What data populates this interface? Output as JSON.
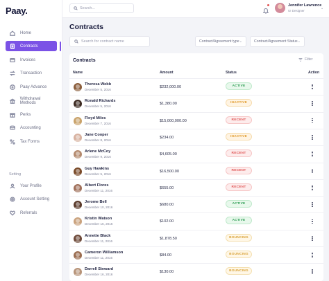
{
  "app": {
    "logo": "Paay."
  },
  "sidebar": {
    "items": [
      {
        "label": "Home",
        "icon": "home-icon"
      },
      {
        "label": "Contracts",
        "icon": "contract-icon",
        "active": true
      },
      {
        "label": "Invoices",
        "icon": "invoice-icon"
      },
      {
        "label": "Transaction",
        "icon": "transaction-icon"
      },
      {
        "label": "Paay Advance",
        "icon": "advance-icon"
      },
      {
        "label": "Withdrawal Methods",
        "icon": "withdrawal-icon"
      },
      {
        "label": "Perks",
        "icon": "perks-icon"
      },
      {
        "label": "Accounting",
        "icon": "accounting-icon"
      },
      {
        "label": "Tax Forms",
        "icon": "tax-icon"
      }
    ],
    "section_label": "Setting",
    "setting_items": [
      {
        "label": "Your Profile",
        "icon": "profile-icon"
      },
      {
        "label": "Account Setting",
        "icon": "settings-icon"
      },
      {
        "label": "Referrals",
        "icon": "heart-icon"
      }
    ]
  },
  "topbar": {
    "search_placeholder": "Search...",
    "user": {
      "name": "Jennifer Lawrence",
      "role": "UI Designer"
    }
  },
  "page": {
    "title": "Contracts",
    "search_placeholder": "Search for contract name",
    "filter_type": "Contract/Agreement type",
    "filter_status": "Contract/Agreement Status"
  },
  "table": {
    "title": "Contracts",
    "filter_label": "Filter",
    "columns": {
      "name": "Name",
      "amount": "Amount",
      "status": "Status",
      "action": "Action"
    },
    "rows": [
      {
        "name": "Theresa Webb",
        "date": "December 5, 2016",
        "amount": "$232,000.00",
        "status": "ACTIVE"
      },
      {
        "name": "Ronald Richards",
        "date": "December 5, 2016",
        "amount": "$1,380.00",
        "status": "INACTIVE"
      },
      {
        "name": "Floyd Miles",
        "date": "December 7, 2016",
        "amount": "$15,000,000.00",
        "status": "RECENT"
      },
      {
        "name": "Jane Cooper",
        "date": "December 8, 2016",
        "amount": "$234.00",
        "status": "INACTIVE"
      },
      {
        "name": "Arlene McCoy",
        "date": "December 9, 2016",
        "amount": "$4,605.00",
        "status": "RECENT"
      },
      {
        "name": "Guy Hawkins",
        "date": "December 5, 2016",
        "amount": "$16,500.00",
        "status": "RECENT"
      },
      {
        "name": "Albert Flores",
        "date": "December 11, 2016",
        "amount": "$655.00",
        "status": "RECENT"
      },
      {
        "name": "Jerome Bell",
        "date": "December 10, 2016",
        "amount": "$680.00",
        "status": "ACTIVE"
      },
      {
        "name": "Kristin Watson",
        "date": "December 16, 2016",
        "amount": "$102.00",
        "status": "ACTIVE"
      },
      {
        "name": "Annette Black",
        "date": "December 11, 2016",
        "amount": "$1,878.50",
        "status": "BOUNCING"
      },
      {
        "name": "Cameron Williamson",
        "date": "December 11, 2016",
        "amount": "$84.00",
        "status": "BOUNCING"
      },
      {
        "name": "Darrell Steward",
        "date": "December 16, 2016",
        "amount": "$130.00",
        "status": "BOUNCING"
      }
    ]
  },
  "colors": {
    "accent": "#7b52e6",
    "active": "#2f9e55",
    "inactive": "#e09a2b",
    "recent": "#e05656",
    "bouncing": "#d9a33a"
  }
}
